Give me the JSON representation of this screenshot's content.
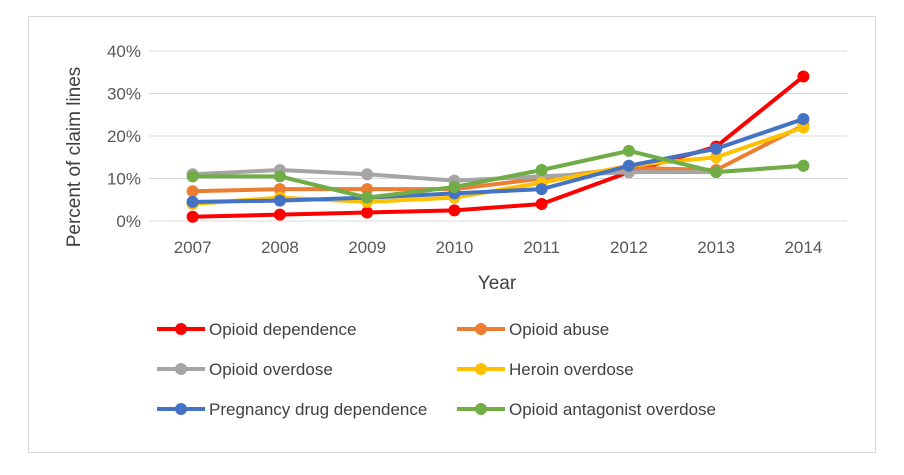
{
  "chart_data": {
    "type": "line",
    "title": "",
    "xlabel": "Year",
    "ylabel": "Percent of claim lines",
    "categories": [
      "2007",
      "2008",
      "2009",
      "2010",
      "2011",
      "2012",
      "2013",
      "2014"
    ],
    "y_ticks": [
      "0%",
      "10%",
      "20%",
      "30%",
      "40%"
    ],
    "ylim": [
      0,
      40
    ],
    "grid": "horizontal",
    "legend_position": "bottom",
    "series": [
      {
        "name": "Opioid dependence",
        "color": "#ff0000",
        "values": [
          1,
          1.5,
          2,
          2.5,
          4,
          11.5,
          17.5,
          34
        ]
      },
      {
        "name": "Opioid abuse",
        "color": "#ed7d31",
        "values": [
          7,
          7.5,
          7.5,
          7.5,
          10,
          12.5,
          12,
          22.5
        ]
      },
      {
        "name": "Opioid overdose",
        "color": "#a5a5a5",
        "values": [
          11,
          12,
          11,
          9.5,
          10.5,
          11.5,
          11.5,
          13
        ]
      },
      {
        "name": "Heroin overdose",
        "color": "#ffc000",
        "values": [
          4,
          5.5,
          4.5,
          5.5,
          9,
          13,
          15,
          22
        ]
      },
      {
        "name": "Pregnancy drug dependence",
        "color": "#4472c4",
        "values": [
          4.5,
          4.8,
          5.5,
          6.5,
          7.5,
          13,
          17,
          24
        ]
      },
      {
        "name": "Opioid antagonist overdose",
        "color": "#70ad47",
        "values": [
          10.5,
          10.5,
          5.5,
          8,
          12,
          16.5,
          11.5,
          13
        ]
      }
    ]
  }
}
